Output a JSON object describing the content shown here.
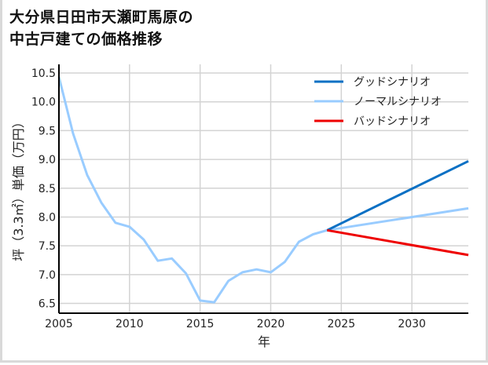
{
  "title_lines": [
    "大分県日田市天瀬町馬原の",
    "中古戸建ての価格推移"
  ],
  "colors": {
    "good": "#0a70c4",
    "normal": "#99ccff",
    "bad": "#ee0000",
    "grid": "#d3d3d3",
    "axis": "#000000"
  },
  "chart_data": {
    "type": "line",
    "title": "大分県日田市天瀬町馬原の中古戸建ての価格推移",
    "xlabel": "年",
    "ylabel": "坪（3.3㎡）単価（万円）",
    "xlim": [
      2005,
      2034
    ],
    "ylim": [
      6.33,
      10.65
    ],
    "x_ticks": [
      2005,
      2010,
      2015,
      2020,
      2025,
      2030
    ],
    "y_ticks": [
      6.5,
      7.0,
      7.5,
      8.0,
      8.5,
      9.0,
      9.5,
      10.0,
      10.5
    ],
    "y_tick_labels": [
      "6.5",
      "7.0",
      "7.5",
      "8.0",
      "8.5",
      "9.0",
      "9.5",
      "10.0",
      "10.5"
    ],
    "grid": true,
    "legend_position": "upper right",
    "series": [
      {
        "name": "グッドシナリオ",
        "color": "#0a70c4",
        "x": [
          2024,
          2034
        ],
        "values": [
          7.77,
          8.97
        ]
      },
      {
        "name": "ノーマルシナリオ",
        "color": "#99ccff",
        "x": [
          2005,
          2006,
          2007,
          2008,
          2009,
          2010,
          2011,
          2012,
          2013,
          2014,
          2015,
          2016,
          2017,
          2018,
          2019,
          2020,
          2021,
          2022,
          2023,
          2024,
          2034
        ],
        "values": [
          10.43,
          9.45,
          8.73,
          8.25,
          7.9,
          7.83,
          7.61,
          7.24,
          7.28,
          7.02,
          6.55,
          6.52,
          6.89,
          7.04,
          7.09,
          7.04,
          7.22,
          7.57,
          7.7,
          7.77,
          8.15
        ]
      },
      {
        "name": "バッドシナリオ",
        "color": "#ee0000",
        "x": [
          2024,
          2034
        ],
        "values": [
          7.77,
          7.34
        ]
      }
    ]
  }
}
